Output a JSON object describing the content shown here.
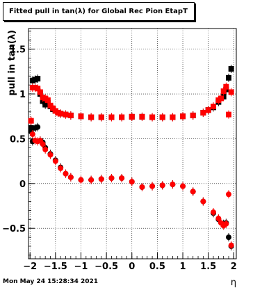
{
  "chart_data": {
    "type": "scatter",
    "title": "Fitted pull in tan(λ) for Global Rec Pion EtapT",
    "xlabel": "η",
    "ylabel": "pull in tan(λ)",
    "xlim": [
      -2.03,
      2.05
    ],
    "ylim": [
      -0.84,
      1.73
    ],
    "x_ticks": [
      -2,
      -1.5,
      -1,
      -0.5,
      0,
      0.5,
      1,
      1.5,
      2
    ],
    "x_tick_labels": [
      "−2",
      "−1.5",
      "−1",
      "−0.5",
      "0",
      "0.5",
      "1",
      "1.5",
      "2"
    ],
    "y_ticks": [
      -0.5,
      0,
      0.5,
      1,
      1.5
    ],
    "y_tick_labels": [
      "−0.5",
      "0",
      "0.5",
      "1",
      "1.5"
    ],
    "grid": true,
    "colors": {
      "black": "#000000",
      "red": "#ff0000"
    },
    "series": [
      {
        "marker": "square",
        "color": "#000000",
        "points": [
          [
            -1.98,
            0.62
          ],
          [
            -1.95,
            1.15
          ],
          [
            -1.9,
            1.16
          ],
          [
            -1.85,
            1.17
          ],
          [
            -1.8,
            1.0
          ],
          [
            -1.75,
            0.92
          ],
          [
            -1.7,
            0.88
          ],
          [
            -1.65,
            0.9
          ],
          [
            -1.6,
            0.86
          ],
          [
            -1.55,
            0.83
          ],
          [
            -1.5,
            0.81
          ],
          [
            -1.45,
            0.79
          ],
          [
            -1.4,
            0.78
          ],
          [
            -1.3,
            0.77
          ],
          [
            -1.2,
            0.76
          ],
          [
            -1.0,
            0.75
          ],
          [
            -0.8,
            0.74
          ],
          [
            -0.6,
            0.74
          ],
          [
            -0.4,
            0.74
          ],
          [
            -0.2,
            0.74
          ],
          [
            0.0,
            0.745
          ],
          [
            0.2,
            0.745
          ],
          [
            0.4,
            0.74
          ],
          [
            0.6,
            0.74
          ],
          [
            0.8,
            0.74
          ],
          [
            1.0,
            0.75
          ],
          [
            1.2,
            0.76
          ],
          [
            1.4,
            0.79
          ],
          [
            1.5,
            0.82
          ],
          [
            1.6,
            0.85
          ],
          [
            1.7,
            0.91
          ],
          [
            1.8,
            0.97
          ],
          [
            1.85,
            1.05
          ],
          [
            1.9,
            1.18
          ],
          [
            1.95,
            1.28
          ]
        ]
      },
      {
        "marker": "circle",
        "color": "#000000",
        "points": [
          [
            -1.98,
            0.58
          ],
          [
            -1.95,
            0.47
          ],
          [
            -1.9,
            0.62
          ],
          [
            -1.85,
            0.63
          ],
          [
            -1.8,
            0.48
          ],
          [
            -1.75,
            0.46
          ],
          [
            -1.7,
            0.4
          ],
          [
            -1.6,
            0.33
          ],
          [
            -1.5,
            0.26
          ],
          [
            -1.4,
            0.18
          ],
          [
            -1.3,
            0.11
          ],
          [
            -1.2,
            0.07
          ],
          [
            -1.0,
            0.04
          ],
          [
            -0.8,
            0.04
          ],
          [
            -0.6,
            0.05
          ],
          [
            -0.4,
            0.06
          ],
          [
            -0.2,
            0.06
          ],
          [
            0.0,
            0.02
          ],
          [
            0.2,
            -0.04
          ],
          [
            0.4,
            -0.03
          ],
          [
            0.6,
            -0.02
          ],
          [
            0.8,
            -0.01
          ],
          [
            1.0,
            -0.03
          ],
          [
            1.2,
            -0.09
          ],
          [
            1.4,
            -0.2
          ],
          [
            1.6,
            -0.33
          ],
          [
            1.7,
            -0.4
          ],
          [
            1.8,
            -0.45
          ],
          [
            1.85,
            -0.44
          ],
          [
            1.9,
            -0.6
          ],
          [
            1.95,
            -0.7
          ]
        ]
      },
      {
        "marker": "square",
        "color": "#ff0000",
        "points": [
          [
            -1.98,
            0.7
          ],
          [
            -1.95,
            1.07
          ],
          [
            -1.9,
            1.07
          ],
          [
            -1.85,
            1.06
          ],
          [
            -1.8,
            1.02
          ],
          [
            -1.75,
            0.96
          ],
          [
            -1.7,
            0.95
          ],
          [
            -1.65,
            0.93
          ],
          [
            -1.6,
            0.87
          ],
          [
            -1.55,
            0.84
          ],
          [
            -1.5,
            0.81
          ],
          [
            -1.45,
            0.79
          ],
          [
            -1.4,
            0.78
          ],
          [
            -1.3,
            0.77
          ],
          [
            -1.2,
            0.76
          ],
          [
            -1.0,
            0.75
          ],
          [
            -0.8,
            0.74
          ],
          [
            -0.6,
            0.74
          ],
          [
            -0.4,
            0.74
          ],
          [
            -0.2,
            0.74
          ],
          [
            0.0,
            0.745
          ],
          [
            0.2,
            0.745
          ],
          [
            0.4,
            0.74
          ],
          [
            0.6,
            0.74
          ],
          [
            0.8,
            0.74
          ],
          [
            1.0,
            0.75
          ],
          [
            1.2,
            0.76
          ],
          [
            1.4,
            0.79
          ],
          [
            1.5,
            0.82
          ],
          [
            1.6,
            0.86
          ],
          [
            1.7,
            0.93
          ],
          [
            1.75,
            0.95
          ],
          [
            1.8,
            1.03
          ],
          [
            1.85,
            1.08
          ],
          [
            1.9,
            0.77
          ],
          [
            1.95,
            1.02
          ]
        ]
      },
      {
        "marker": "circle",
        "color": "#ff0000",
        "points": [
          [
            -1.98,
            0.7
          ],
          [
            -1.95,
            0.55
          ],
          [
            -1.9,
            0.48
          ],
          [
            -1.85,
            0.47
          ],
          [
            -1.8,
            0.48
          ],
          [
            -1.75,
            0.44
          ],
          [
            -1.7,
            0.38
          ],
          [
            -1.6,
            0.32
          ],
          [
            -1.5,
            0.25
          ],
          [
            -1.4,
            0.17
          ],
          [
            -1.3,
            0.11
          ],
          [
            -1.2,
            0.07
          ],
          [
            -1.0,
            0.04
          ],
          [
            -0.8,
            0.04
          ],
          [
            -0.6,
            0.05
          ],
          [
            -0.4,
            0.06
          ],
          [
            -0.2,
            0.06
          ],
          [
            0.0,
            0.02
          ],
          [
            0.2,
            -0.04
          ],
          [
            0.4,
            -0.03
          ],
          [
            0.6,
            -0.02
          ],
          [
            0.8,
            -0.01
          ],
          [
            1.0,
            -0.03
          ],
          [
            1.2,
            -0.09
          ],
          [
            1.4,
            -0.2
          ],
          [
            1.6,
            -0.32
          ],
          [
            1.7,
            -0.39
          ],
          [
            1.75,
            -0.44
          ],
          [
            1.8,
            -0.47
          ],
          [
            1.85,
            -0.45
          ],
          [
            1.9,
            -0.12
          ],
          [
            1.95,
            -0.69
          ]
        ]
      }
    ]
  },
  "footer": {
    "timestamp": "Mon May 24 15:28:34 2021"
  }
}
